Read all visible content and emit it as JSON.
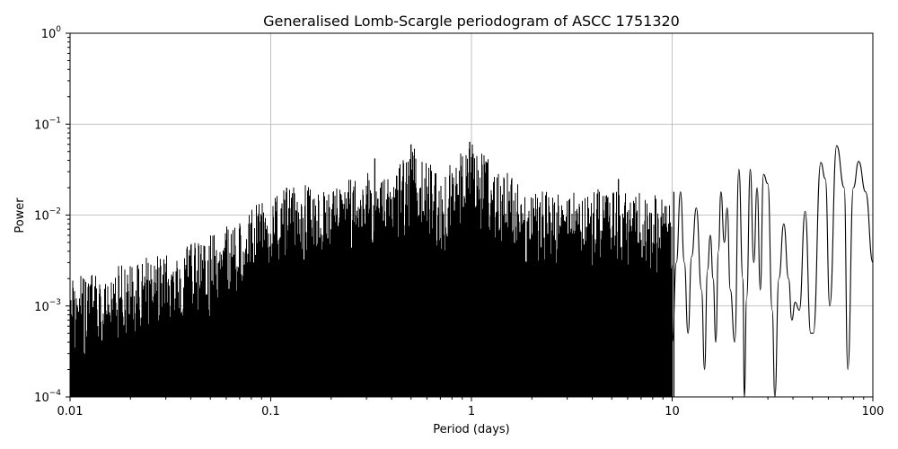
{
  "chart_data": {
    "type": "line",
    "title": "Generalised Lomb-Scargle periodogram of ASCC 1751320",
    "xlabel": "Period (days)",
    "ylabel": "Power",
    "xscale": "log",
    "yscale": "log",
    "xlim": [
      0.01,
      100
    ],
    "ylim": [
      0.0001,
      1
    ],
    "grid": true,
    "x_ticks": [
      {
        "value": 0.01,
        "label": "0.01"
      },
      {
        "value": 0.1,
        "label": "0.1"
      },
      {
        "value": 1,
        "label": "1"
      },
      {
        "value": 10,
        "label": "10"
      },
      {
        "value": 100,
        "label": "100"
      }
    ],
    "y_ticks": [
      {
        "value": 0.0001,
        "base": "10",
        "exp": "−4"
      },
      {
        "value": 0.001,
        "base": "10",
        "exp": "−3"
      },
      {
        "value": 0.01,
        "base": "10",
        "exp": "−2"
      },
      {
        "value": 0.1,
        "base": "10",
        "exp": "−1"
      },
      {
        "value": 1,
        "base": "10",
        "exp": "0"
      }
    ],
    "line_color": "#000000",
    "envelope_max": [
      [
        0.01,
        0.002
      ],
      [
        0.02,
        0.003
      ],
      [
        0.03,
        0.004
      ],
      [
        0.05,
        0.006
      ],
      [
        0.07,
        0.009
      ],
      [
        0.1,
        0.018
      ],
      [
        0.15,
        0.022
      ],
      [
        0.2,
        0.02
      ],
      [
        0.3,
        0.03
      ],
      [
        0.4,
        0.025
      ],
      [
        0.5,
        0.06
      ],
      [
        0.7,
        0.028
      ],
      [
        1.0,
        0.064
      ],
      [
        1.5,
        0.03
      ],
      [
        2.0,
        0.02
      ],
      [
        3.0,
        0.018
      ],
      [
        5.0,
        0.02
      ],
      [
        7.0,
        0.018
      ],
      [
        10.0,
        0.015
      ]
    ],
    "peaks": [
      {
        "x": 0.12,
        "y": 0.02
      },
      {
        "x": 0.33,
        "y": 0.042
      },
      {
        "x": 0.5,
        "y": 0.06
      },
      {
        "x": 0.98,
        "y": 0.064
      },
      {
        "x": 5.4,
        "y": 0.025
      },
      {
        "x": 10.2,
        "y": 0.018
      }
    ],
    "long_period_curve": [
      [
        10.0,
        0.0004
      ],
      [
        10.5,
        0.003
      ],
      [
        11.0,
        0.018
      ],
      [
        11.5,
        0.003
      ],
      [
        12.0,
        0.0005
      ],
      [
        12.5,
        0.0035
      ],
      [
        13.2,
        0.012
      ],
      [
        14.0,
        0.0015
      ],
      [
        14.5,
        0.0002
      ],
      [
        15.0,
        0.0025
      ],
      [
        15.5,
        0.006
      ],
      [
        16.0,
        0.002
      ],
      [
        16.5,
        0.0004
      ],
      [
        17.0,
        0.004
      ],
      [
        17.5,
        0.018
      ],
      [
        18.2,
        0.005
      ],
      [
        18.8,
        0.012
      ],
      [
        19.5,
        0.0015
      ],
      [
        20.5,
        0.0004
      ],
      [
        21.5,
        0.032
      ],
      [
        22.5,
        0.002
      ],
      [
        22.9,
        0.0001
      ],
      [
        23.5,
        0.0012
      ],
      [
        24.5,
        0.032
      ],
      [
        25.5,
        0.003
      ],
      [
        26.5,
        0.02
      ],
      [
        27.5,
        0.0015
      ],
      [
        28.5,
        0.028
      ],
      [
        30.0,
        0.022
      ],
      [
        31.5,
        0.0009
      ],
      [
        32.5,
        0.0001
      ],
      [
        34.0,
        0.002
      ],
      [
        36.0,
        0.008
      ],
      [
        38.0,
        0.002
      ],
      [
        39.5,
        0.0007
      ],
      [
        41.0,
        0.0011
      ],
      [
        43.0,
        0.0009
      ],
      [
        46.0,
        0.011
      ],
      [
        49.0,
        0.0005
      ],
      [
        50.5,
        0.0005
      ],
      [
        55.0,
        0.038
      ],
      [
        58.0,
        0.025
      ],
      [
        61.0,
        0.001
      ],
      [
        66.0,
        0.058
      ],
      [
        72.0,
        0.02
      ],
      [
        75.0,
        0.0002
      ],
      [
        80.0,
        0.02
      ],
      [
        85.0,
        0.039
      ],
      [
        92.0,
        0.018
      ],
      [
        100.0,
        0.003
      ]
    ]
  }
}
